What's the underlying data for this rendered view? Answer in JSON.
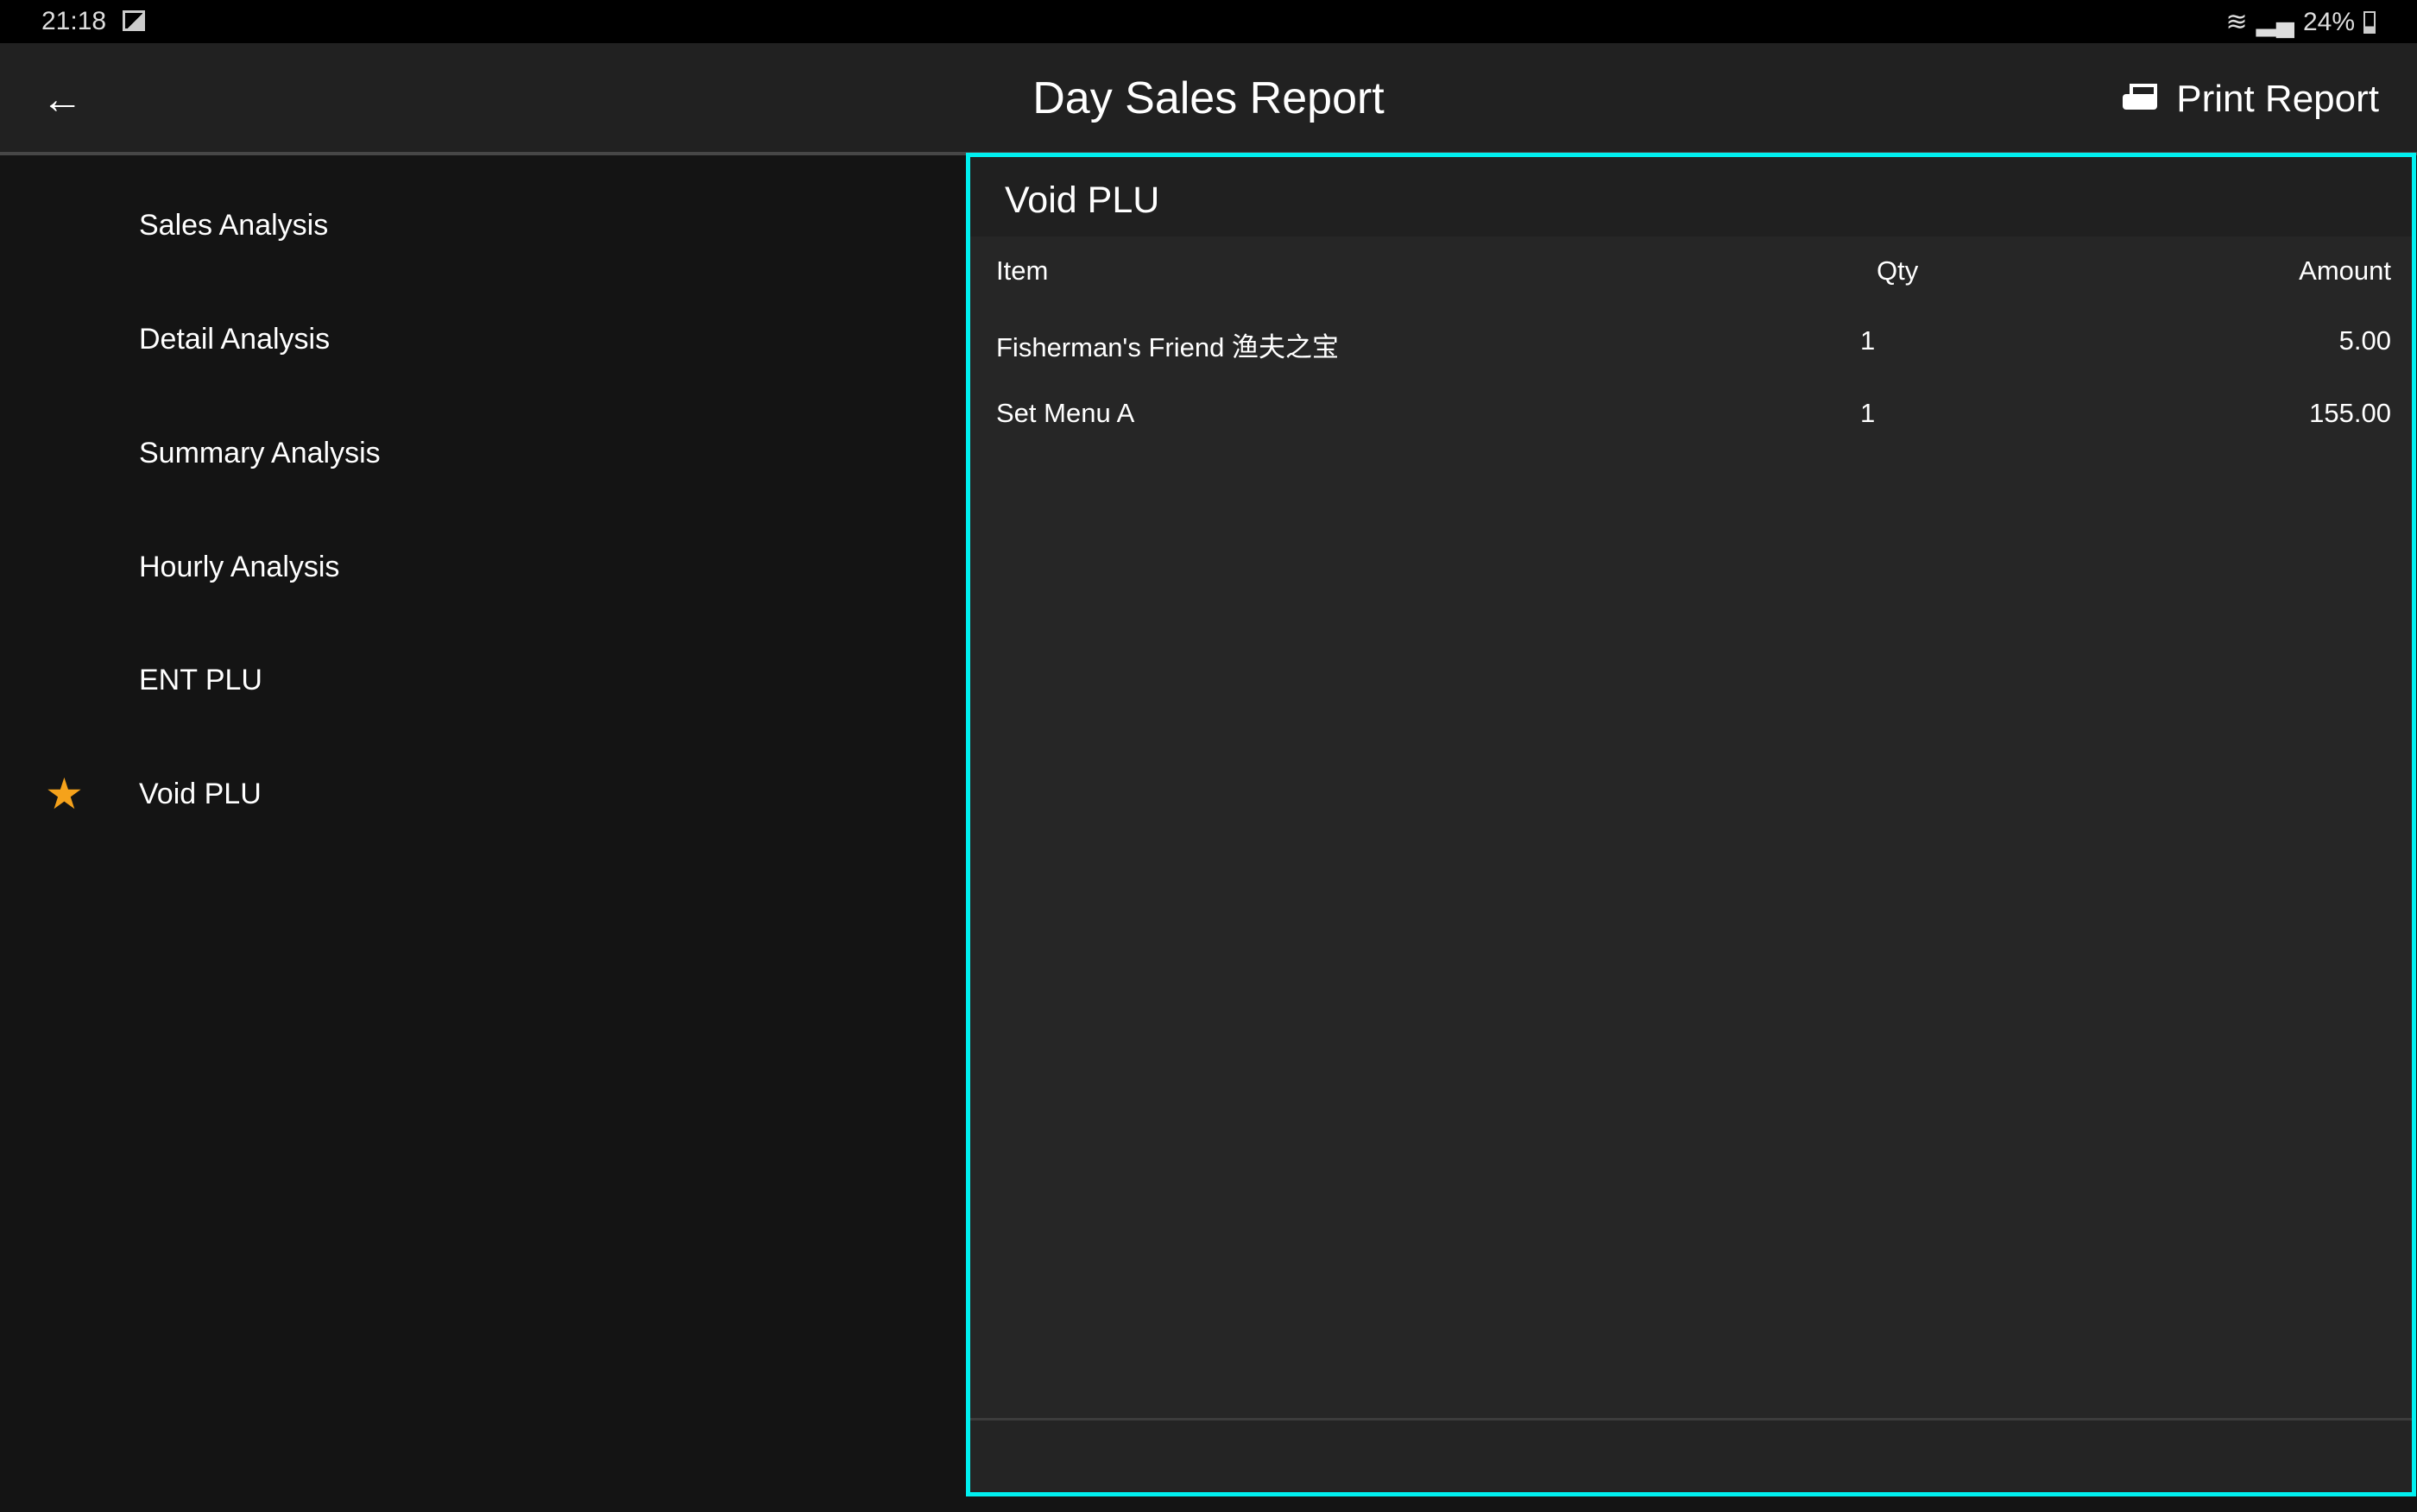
{
  "status_bar": {
    "time": "21:18",
    "battery": "24%",
    "icons": [
      "image-icon",
      "wifi-icon",
      "signal-icon",
      "battery-icon"
    ]
  },
  "header": {
    "title": "Day Sales Report",
    "print_label": "Print Report",
    "back_icon": "arrow-left-icon",
    "print_icon": "printer-icon"
  },
  "sidebar": {
    "items": [
      {
        "label": "Sales Analysis",
        "selected": false
      },
      {
        "label": "Detail Analysis",
        "selected": false
      },
      {
        "label": "Summary Analysis",
        "selected": false
      },
      {
        "label": "Hourly Analysis",
        "selected": false
      },
      {
        "label": "ENT PLU",
        "selected": false
      },
      {
        "label": "Void PLU",
        "selected": true
      }
    ],
    "selected_icon": "star-icon"
  },
  "panel": {
    "title": "Void PLU",
    "columns": {
      "item": "Item",
      "qty": "Qty",
      "amount": "Amount"
    },
    "rows": [
      {
        "item": "Fisherman's Friend 渔夫之宝",
        "qty": "1",
        "amount": "5.00"
      },
      {
        "item": "Set Menu A",
        "qty": "1",
        "amount": "155.00"
      }
    ]
  },
  "colors": {
    "accent_border": "#00f0f0",
    "star": "#f5a21b"
  }
}
